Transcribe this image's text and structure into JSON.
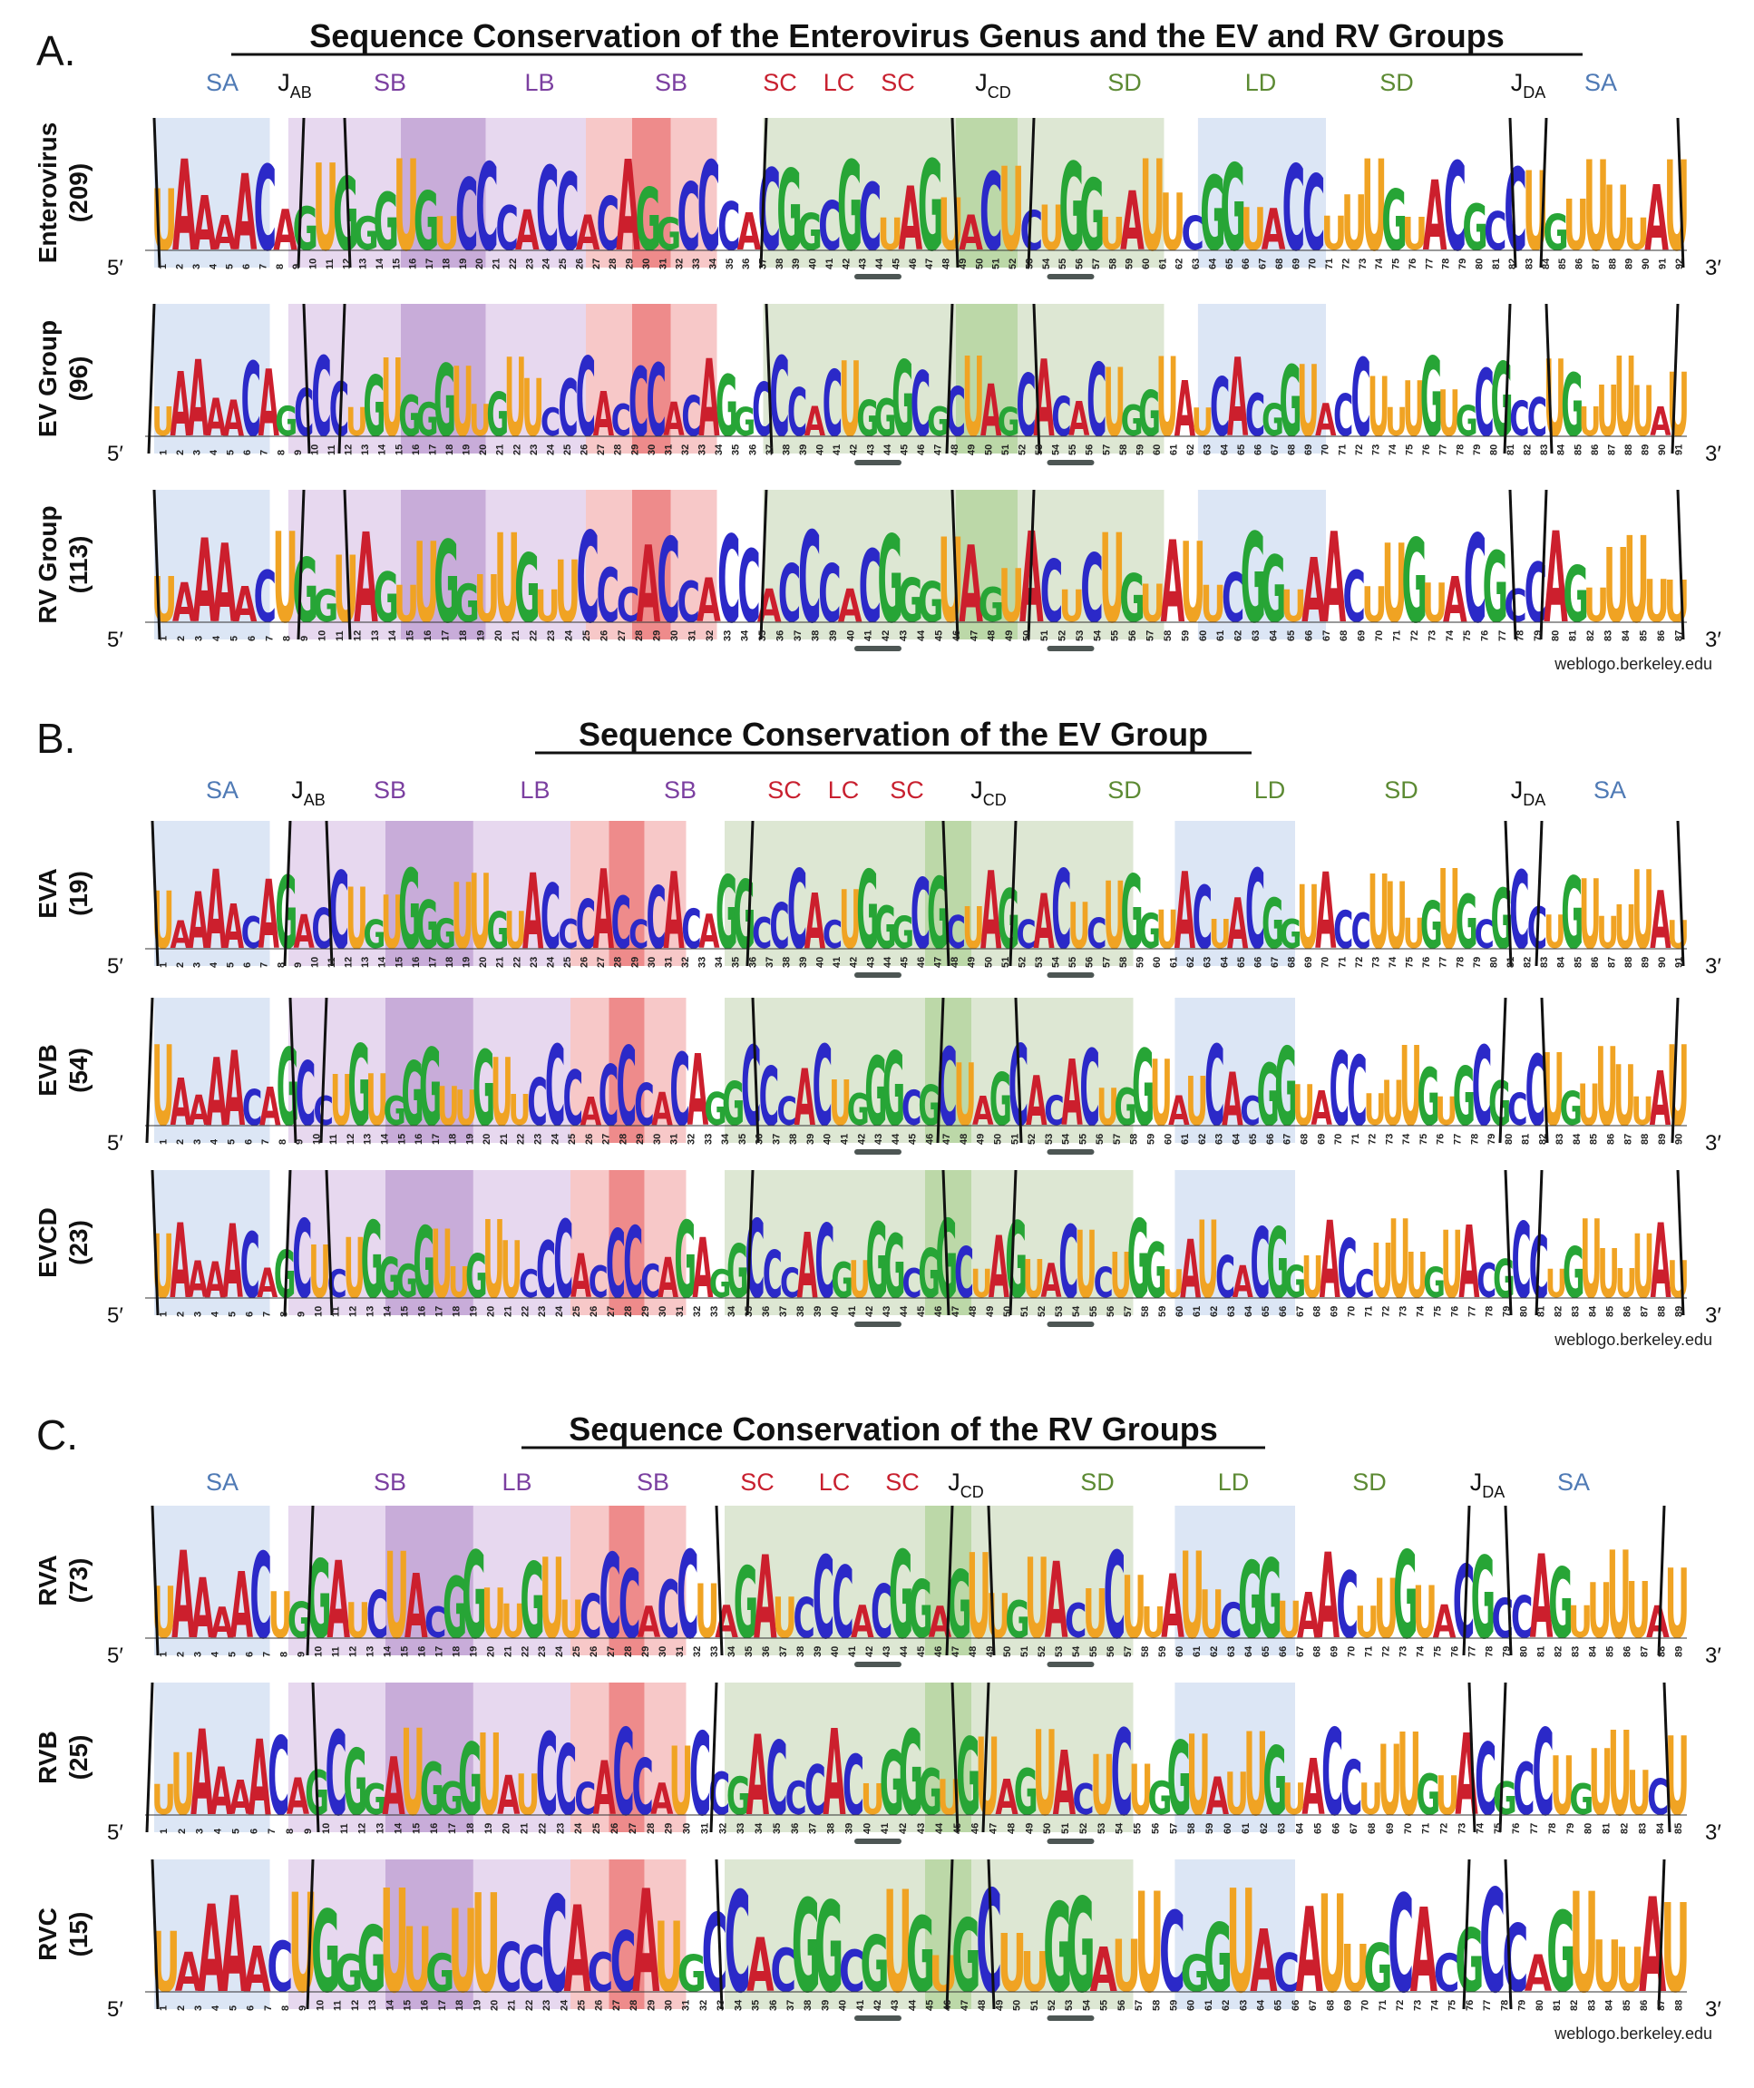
{
  "watermark": "weblogo.berkeley.edu",
  "end_labels": {
    "five_prime": "5′",
    "three_prime": "3′"
  },
  "colors": {
    "A": "#cc1f2d",
    "C": "#2b29c8",
    "G": "#27a536",
    "U": "#f0a323",
    "SA": "#dce6f5",
    "SB": "#e7d8ef",
    "LB": "#c8acd9",
    "SC": "#f7c8c8",
    "LC": "#ee8b8b",
    "SD": "#dde7d3",
    "LD": "#bcd8a8",
    "label_SA": "#4f7ab5",
    "label_B": "#7b3fa0",
    "label_C": "#c8202f",
    "label_D": "#5c8a33"
  },
  "panels": [
    {
      "letter": "A.",
      "title": "Sequence Conservation of the Enterovirus Genus and the EV and RV Groups",
      "region_labels": [
        {
          "text": "SA",
          "kind": "SA"
        },
        {
          "text": "J",
          "sub": "AB",
          "kind": "J"
        },
        {
          "text": "SB",
          "kind": "B"
        },
        {
          "text": "LB",
          "kind": "B"
        },
        {
          "text": "SB",
          "kind": "B"
        },
        {
          "text": "SC",
          "kind": "C"
        },
        {
          "text": "LC",
          "kind": "C"
        },
        {
          "text": "SC",
          "kind": "C"
        },
        {
          "text": "J",
          "sub": "CD",
          "kind": "J"
        },
        {
          "text": "SD",
          "kind": "D"
        },
        {
          "text": "LD",
          "kind": "D"
        },
        {
          "text": "SD",
          "kind": "D"
        },
        {
          "text": "J",
          "sub": "DA",
          "kind": "J"
        },
        {
          "text": "SA",
          "kind": "SA"
        }
      ],
      "rows": [
        {
          "name": "Enterovirus",
          "count": "(209)",
          "n": 92,
          "seq": "UAAAACAGUGGGUGUCCCACCACAGGCCCACGGCGCUAGUACUCUGGUAUUCGGUACCUUUGUACGCCUGUUUUAU"
        },
        {
          "name": "EV Group",
          "count": "(96)",
          "n": 91,
          "seq": "UAAAACAGCCCUGUGGGUUGUUCCCACCCACAGGCCCACUGGGCGCUAGCACACUGGUAUCACGGUACCUUUGUGCGCCUGUUUUAU"
        },
        {
          "name": "RV Group",
          "count": "(113)",
          "n": 87,
          "seq": "UAAAACUGGUAGUUGGUUGUUCCCACCACCACCCACGGGUAGUACUCUGUAUUCGGUAACUUGUACGCCAGUUUUU"
        }
      ]
    },
    {
      "letter": "B.",
      "title": "Sequence Conservation of the EV Group",
      "region_labels": [
        {
          "text": "SA",
          "kind": "SA"
        },
        {
          "text": "J",
          "sub": "AB",
          "kind": "J"
        },
        {
          "text": "SB",
          "kind": "B"
        },
        {
          "text": "LB",
          "kind": "B"
        },
        {
          "text": "SB",
          "kind": "B"
        },
        {
          "text": "SC",
          "kind": "C"
        },
        {
          "text": "LC",
          "kind": "C"
        },
        {
          "text": "SC",
          "kind": "C"
        },
        {
          "text": "J",
          "sub": "CD",
          "kind": "J"
        },
        {
          "text": "SD",
          "kind": "D"
        },
        {
          "text": "LD",
          "kind": "D"
        },
        {
          "text": "SD",
          "kind": "D"
        },
        {
          "text": "J",
          "sub": "DA",
          "kind": "J"
        },
        {
          "text": "SA",
          "kind": "SA"
        }
      ],
      "rows": [
        {
          "name": "EVA",
          "count": "(19)",
          "n": 91,
          "seq": "UAAAACAGACCUGUGGGUUGUACCCACCCACAGGCCCACUGGGCGCUAGCACUCUGGUACUACGGUACCUUUGUGCGCCUGUUUUAU"
        },
        {
          "name": "EVB",
          "count": "(54)",
          "n": 90,
          "seq": "UAAAACAGCCUGUGGGUUGUUCCCACCCACAGGCCCACUGGGCGCUAGCACACUGGUAUCACGGUACCUUUGUGCGCCUGUUUUAU"
        },
        {
          "name": "EVCD",
          "count": "(23)",
          "n": 89,
          "seq": "UAAAACAGCUCUGGGGUUGUUCCCACCCCAGAGGCCCACGUGGCGGCUAGUACUCUGGUAUCACGGUACCUUUGUACGCCUGUUUUAU"
        }
      ]
    },
    {
      "letter": "C.",
      "title": "Sequence Conservation of the RV Groups",
      "region_labels": [
        {
          "text": "SA",
          "kind": "SA"
        },
        {
          "text": "SB",
          "kind": "B"
        },
        {
          "text": "LB",
          "kind": "B"
        },
        {
          "text": "SB",
          "kind": "B"
        },
        {
          "text": "SC",
          "kind": "C"
        },
        {
          "text": "LC",
          "kind": "C"
        },
        {
          "text": "SC",
          "kind": "C"
        },
        {
          "text": "J",
          "sub": "CD",
          "kind": "J"
        },
        {
          "text": "SD",
          "kind": "D"
        },
        {
          "text": "LD",
          "kind": "D"
        },
        {
          "text": "SD",
          "kind": "D"
        },
        {
          "text": "J",
          "sub": "DA",
          "kind": "J"
        },
        {
          "text": "SA",
          "kind": "SA"
        }
      ],
      "rows": [
        {
          "name": "RVA",
          "count": "(73)",
          "n": 89,
          "seq": "UAAAACUGGAUCUACGGUUGUUCCCACCUAGAUCCCACGGAGUUGUACUCUUAUUCGGUAACUUGUACGCCAGUUUUAU"
        },
        {
          "name": "RVB",
          "count": "(25)",
          "n": 85,
          "seq": "UUAAAACAGCGGAUGGGUAUCCCACCAUCCGACCCACUGGGUGUAGUACUCUGGUAUUGUACCUUUGUACGCCUGUUUCU"
        },
        {
          "name": "RVC",
          "count": "(15)",
          "n": 88,
          "seq": "UAAAACUGGGUUGUUCCCACCAUGCCACGGCGUGUGCUUGGAUUCGGUACAUUGCACGCCAGUUUAU"
        }
      ]
    }
  ]
}
